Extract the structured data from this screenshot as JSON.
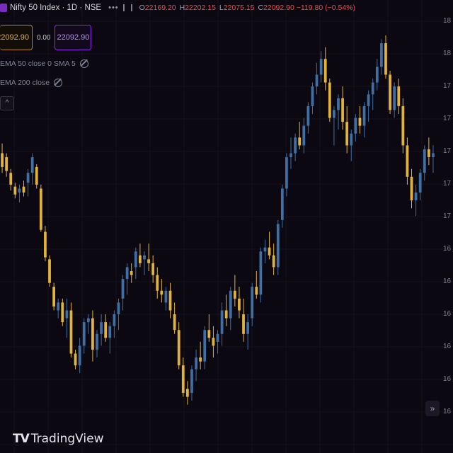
{
  "header": {
    "title": "Nifty 50 Index · 1D · NSE",
    "menu": "•••",
    "ohlc": {
      "o_label": "O",
      "o": "22169.20",
      "h_label": "H",
      "h": "22202.15",
      "l_label": "L",
      "l": "22075.15",
      "c_label": "C",
      "c": "22092.90",
      "change": "−119.80 (−0.54%)"
    }
  },
  "trade": {
    "sell_price": "22092.90",
    "spread": "0.00",
    "buy_price": "22092.90"
  },
  "indicators": [
    {
      "label": "EMA 50 close 0 SMA 5"
    },
    {
      "label": "EMA 200 close"
    }
  ],
  "collapse_glyph": "^",
  "scroll_glyph": "»",
  "logo": {
    "mark": "TV",
    "text": "TradingView"
  },
  "axis": {
    "labels": [
      "18",
      "18",
      "17",
      "17",
      "17",
      "17",
      "17",
      "16",
      "16",
      "16",
      "16",
      "16",
      "16"
    ]
  },
  "colors": {
    "up": "#3f6fa3",
    "down": "#e2b33a",
    "background": "#0b0812",
    "grid": "#15121c"
  },
  "chart_data": {
    "type": "candlestick",
    "title": "",
    "series": [
      {
        "candles": [
          [
            0.7,
            0.725,
            0.65,
            0.665
          ],
          [
            0.69,
            0.7,
            0.64,
            0.655
          ],
          [
            0.65,
            0.66,
            0.605,
            0.62
          ],
          [
            0.615,
            0.625,
            0.585,
            0.595
          ],
          [
            0.6,
            0.62,
            0.575,
            0.61
          ],
          [
            0.615,
            0.63,
            0.59,
            0.6
          ],
          [
            0.625,
            0.66,
            0.59,
            0.65
          ],
          [
            0.65,
            0.7,
            0.62,
            0.69
          ],
          [
            0.665,
            0.672,
            0.61,
            0.62
          ],
          [
            0.61,
            0.62,
            0.5,
            0.505
          ],
          [
            0.5,
            0.515,
            0.425,
            0.435
          ],
          [
            0.43,
            0.44,
            0.36,
            0.37
          ],
          [
            0.36,
            0.37,
            0.3,
            0.31
          ],
          [
            0.3,
            0.33,
            0.28,
            0.32
          ],
          [
            0.32,
            0.33,
            0.26,
            0.27
          ],
          [
            0.28,
            0.33,
            0.23,
            0.3
          ],
          [
            0.3,
            0.32,
            0.18,
            0.19
          ],
          [
            0.19,
            0.2,
            0.15,
            0.16
          ],
          [
            0.16,
            0.23,
            0.14,
            0.21
          ],
          [
            0.21,
            0.28,
            0.19,
            0.27
          ],
          [
            0.27,
            0.29,
            0.24,
            0.28
          ],
          [
            0.28,
            0.3,
            0.17,
            0.2
          ],
          [
            0.2,
            0.25,
            0.18,
            0.24
          ],
          [
            0.24,
            0.29,
            0.21,
            0.27
          ],
          [
            0.27,
            0.29,
            0.22,
            0.23
          ],
          [
            0.23,
            0.27,
            0.19,
            0.26
          ],
          [
            0.26,
            0.3,
            0.23,
            0.29
          ],
          [
            0.29,
            0.33,
            0.25,
            0.32
          ],
          [
            0.33,
            0.39,
            0.3,
            0.38
          ],
          [
            0.38,
            0.42,
            0.34,
            0.41
          ],
          [
            0.4,
            0.42,
            0.37,
            0.39
          ],
          [
            0.41,
            0.46,
            0.38,
            0.45
          ],
          [
            0.44,
            0.47,
            0.41,
            0.42
          ],
          [
            0.43,
            0.45,
            0.39,
            0.44
          ],
          [
            0.43,
            0.47,
            0.4,
            0.42
          ],
          [
            0.42,
            0.44,
            0.37,
            0.39
          ],
          [
            0.39,
            0.41,
            0.33,
            0.35
          ],
          [
            0.35,
            0.38,
            0.32,
            0.34
          ],
          [
            0.32,
            0.36,
            0.3,
            0.35
          ],
          [
            0.35,
            0.37,
            0.28,
            0.3
          ],
          [
            0.29,
            0.32,
            0.24,
            0.25
          ],
          [
            0.25,
            0.27,
            0.15,
            0.16
          ],
          [
            0.16,
            0.18,
            0.08,
            0.09
          ],
          [
            0.1,
            0.12,
            0.06,
            0.08
          ],
          [
            0.09,
            0.16,
            0.07,
            0.15
          ],
          [
            0.15,
            0.2,
            0.12,
            0.18
          ],
          [
            0.18,
            0.22,
            0.15,
            0.17
          ],
          [
            0.17,
            0.26,
            0.15,
            0.25
          ],
          [
            0.25,
            0.29,
            0.22,
            0.23
          ],
          [
            0.23,
            0.26,
            0.18,
            0.21
          ],
          [
            0.22,
            0.25,
            0.19,
            0.24
          ],
          [
            0.24,
            0.32,
            0.21,
            0.3
          ],
          [
            0.3,
            0.34,
            0.26,
            0.28
          ],
          [
            0.28,
            0.36,
            0.25,
            0.35
          ],
          [
            0.35,
            0.39,
            0.31,
            0.33
          ],
          [
            0.33,
            0.36,
            0.28,
            0.3
          ],
          [
            0.29,
            0.33,
            0.22,
            0.24
          ],
          [
            0.24,
            0.29,
            0.2,
            0.27
          ],
          [
            0.28,
            0.37,
            0.26,
            0.36
          ],
          [
            0.36,
            0.4,
            0.33,
            0.34
          ],
          [
            0.34,
            0.46,
            0.32,
            0.45
          ],
          [
            0.45,
            0.48,
            0.42,
            0.46
          ],
          [
            0.46,
            0.5,
            0.43,
            0.44
          ],
          [
            0.44,
            0.47,
            0.39,
            0.41
          ],
          [
            0.41,
            0.53,
            0.39,
            0.52
          ],
          [
            0.53,
            0.62,
            0.51,
            0.61
          ],
          [
            0.61,
            0.7,
            0.59,
            0.69
          ],
          [
            0.69,
            0.74,
            0.66,
            0.7
          ],
          [
            0.7,
            0.75,
            0.68,
            0.74
          ],
          [
            0.74,
            0.78,
            0.71,
            0.72
          ],
          [
            0.72,
            0.79,
            0.7,
            0.77
          ],
          [
            0.77,
            0.83,
            0.75,
            0.82
          ],
          [
            0.82,
            0.88,
            0.8,
            0.87
          ],
          [
            0.87,
            0.93,
            0.85,
            0.9
          ],
          [
            0.9,
            0.96,
            0.88,
            0.94
          ],
          [
            0.94,
            0.97,
            0.86,
            0.88
          ],
          [
            0.88,
            0.89,
            0.78,
            0.79
          ],
          [
            0.79,
            0.82,
            0.72,
            0.81
          ],
          [
            0.81,
            0.85,
            0.76,
            0.84
          ],
          [
            0.84,
            0.87,
            0.76,
            0.78
          ],
          [
            0.78,
            0.82,
            0.7,
            0.72
          ],
          [
            0.72,
            0.76,
            0.68,
            0.75
          ],
          [
            0.75,
            0.8,
            0.73,
            0.79
          ],
          [
            0.79,
            0.82,
            0.75,
            0.77
          ],
          [
            0.77,
            0.83,
            0.74,
            0.82
          ],
          [
            0.82,
            0.86,
            0.78,
            0.85
          ],
          [
            0.85,
            0.89,
            0.81,
            0.88
          ],
          [
            0.88,
            0.94,
            0.86,
            0.92
          ],
          [
            0.92,
            0.99,
            0.9,
            0.98
          ],
          [
            0.98,
            1.0,
            0.89,
            0.9
          ],
          [
            0.9,
            0.91,
            0.8,
            0.81
          ],
          [
            0.81,
            0.88,
            0.79,
            0.87
          ],
          [
            0.87,
            0.89,
            0.8,
            0.82
          ],
          [
            0.82,
            0.84,
            0.7,
            0.72
          ],
          [
            0.72,
            0.74,
            0.62,
            0.64
          ],
          [
            0.64,
            0.66,
            0.56,
            0.58
          ],
          [
            0.58,
            0.62,
            0.54,
            0.6
          ],
          [
            0.6,
            0.66,
            0.58,
            0.65
          ],
          [
            0.65,
            0.72,
            0.63,
            0.71
          ],
          [
            0.71,
            0.74,
            0.67,
            0.69
          ],
          [
            0.69,
            0.72,
            0.65,
            0.7
          ]
        ]
      }
    ],
    "ylim": [
      0,
      1
    ],
    "grid": true,
    "legend": "none"
  }
}
